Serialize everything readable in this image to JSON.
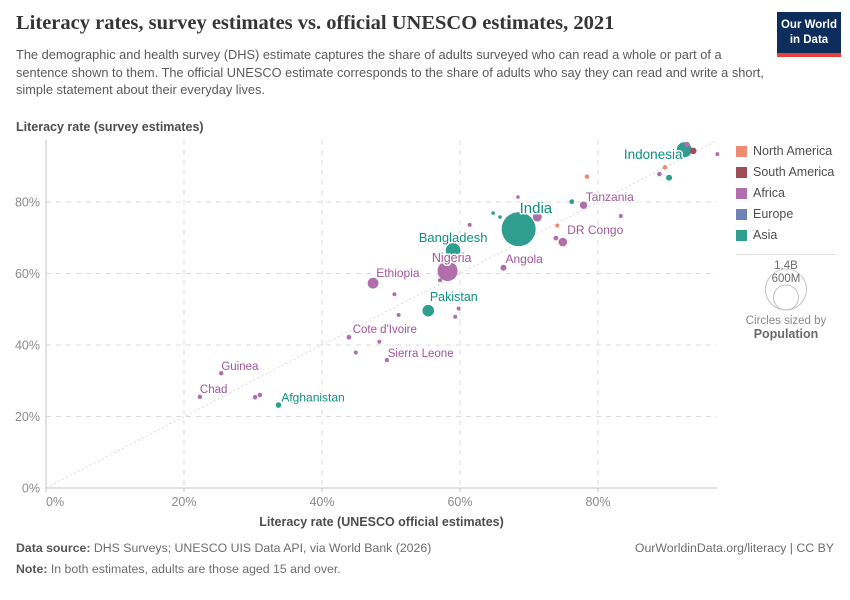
{
  "header": {
    "title": "Literacy rates, survey estimates vs. official UNESCO estimates, 2021",
    "subtitle": "The demographic and health survey (DHS) estimate captures the share of adults surveyed who can read a whole or part of a sentence shown to them. The official UNESCO estimate corresponds to the share of adults who say they can read and write a short, simple statement about their everyday lives.",
    "logo_line1": "Our World",
    "logo_line2": "in Data",
    "logo_bg": "#0d2e5c",
    "logo_stripe": "#e8413c"
  },
  "colors": {
    "North America": "#ee8b72",
    "South America": "#9c4f54",
    "Africa": "#b16dac",
    "Europe": "#6d83b5",
    "Asia": "#2f9e90"
  },
  "label_colors": {
    "North America": "#e56e5a",
    "South America": "#8c4347",
    "Africa": "#a2559c",
    "Europe": "#4c6a9c",
    "Asia": "#0d9180"
  },
  "legend": {
    "items": [
      {
        "label": "North America",
        "color": "#ee8b72"
      },
      {
        "label": "South America",
        "color": "#9c4f54"
      },
      {
        "label": "Africa",
        "color": "#b16dac"
      },
      {
        "label": "Europe",
        "color": "#6d83b5"
      },
      {
        "label": "Asia",
        "color": "#2f9e90"
      }
    ]
  },
  "size_legend": {
    "big_value": "1.4B",
    "small_value": "600M",
    "caption_line1": "Circles sized by",
    "caption_line2": "Population"
  },
  "chart_data": {
    "type": "scatter",
    "title": "Literacy rates, survey estimates vs. official UNESCO estimates, 2021",
    "xlabel": "Literacy rate (UNESCO official estimates)",
    "ylabel": "Literacy rate (survey estimates)",
    "xlim": [
      0,
      97
    ],
    "ylim": [
      0,
      97
    ],
    "x_ticks": [
      0,
      20,
      40,
      60,
      80
    ],
    "y_ticks": [
      0,
      20,
      40,
      60,
      80
    ],
    "grid_ticks": [
      20,
      40,
      60,
      80
    ],
    "grid": true,
    "diagonal_reference_line": true,
    "legend_position": "right",
    "sized_by": "Population",
    "points": [
      {
        "name": "India",
        "continent": "Asia",
        "x": 68.5,
        "y": 72.4,
        "r": 17,
        "label_x": 71.0,
        "label_y": 78.0,
        "label_size": 15
      },
      {
        "name": "Indonesia",
        "continent": "Asia",
        "x": 92.5,
        "y": 94.6,
        "r": 7.5,
        "label_x": 88.0,
        "label_y": 93.2,
        "label_size": 13.5
      },
      {
        "name": "Bangladesh",
        "continent": "Asia",
        "x": 59.0,
        "y": 66.5,
        "r": 7.3,
        "label_x": 59.0,
        "label_y": 69.9,
        "label_size": 13
      },
      {
        "name": "Pakistan",
        "continent": "Asia",
        "x": 55.4,
        "y": 49.6,
        "r": 5.8,
        "label_x": 59.1,
        "label_y": 53.4,
        "label_size": 12.5
      },
      {
        "name": "Afghanistan",
        "continent": "Asia",
        "x": 33.7,
        "y": 23.2,
        "r": 2.8,
        "label_x": 38.7,
        "label_y": 25.3,
        "label_size": 12
      },
      {
        "name": "Nigeria",
        "continent": "Africa",
        "x": 58.2,
        "y": 60.7,
        "r": 10,
        "label_x": 58.8,
        "label_y": 64.3,
        "label_size": 12.5
      },
      {
        "name": "Ethiopia",
        "continent": "Africa",
        "x": 47.4,
        "y": 57.3,
        "r": 5.4,
        "label_x": 51.0,
        "label_y": 60.1,
        "label_size": 12
      },
      {
        "name": "Tanzania",
        "continent": "Africa",
        "x": 77.9,
        "y": 79.1,
        "r": 3.7,
        "label_x": 81.7,
        "label_y": 81.4,
        "label_size": 12
      },
      {
        "name": "DR Congo",
        "continent": "Africa",
        "x": 74.9,
        "y": 68.8,
        "r": 4.3,
        "label_x": 79.6,
        "label_y": 72.2,
        "label_size": 12
      },
      {
        "name": "Angola",
        "continent": "Africa",
        "x": 66.3,
        "y": 61.6,
        "r": 3.0,
        "label_x": 69.3,
        "label_y": 64.1,
        "label_size": 12
      },
      {
        "name": "Cote d'Ivoire",
        "continent": "Africa",
        "x": 43.9,
        "y": 42.2,
        "r": 2.4,
        "label_x": 49.1,
        "label_y": 44.5,
        "label_size": 11.5
      },
      {
        "name": "Sierra Leone",
        "continent": "Africa",
        "x": 49.4,
        "y": 35.8,
        "r": 2.2,
        "label_x": 54.3,
        "label_y": 37.8,
        "label_size": 11.5
      },
      {
        "name": "Guinea",
        "continent": "Africa",
        "x": 25.4,
        "y": 32.1,
        "r": 2.2,
        "label_x": 28.1,
        "label_y": 34.1,
        "label_size": 11.5
      },
      {
        "name": "Chad",
        "continent": "Africa",
        "x": 22.3,
        "y": 25.5,
        "r": 2.2,
        "label_x": 24.3,
        "label_y": 27.7,
        "label_size": 11.5
      },
      {
        "continent": "Africa",
        "x": 92.9,
        "y": 96.1,
        "r": 2.7
      },
      {
        "continent": "South America",
        "x": 93.8,
        "y": 94.3,
        "r": 3.3
      },
      {
        "continent": "Africa",
        "x": 97.3,
        "y": 93.4,
        "r": 2.0
      },
      {
        "continent": "North America",
        "x": 89.7,
        "y": 89.7,
        "r": 2.3
      },
      {
        "continent": "Africa",
        "x": 88.9,
        "y": 87.8,
        "r": 2.3
      },
      {
        "continent": "Asia",
        "x": 90.3,
        "y": 86.8,
        "r": 3.0
      },
      {
        "continent": "North America",
        "x": 78.4,
        "y": 87.1,
        "r": 2.3
      },
      {
        "continent": "Asia",
        "x": 76.2,
        "y": 80.1,
        "r": 2.4
      },
      {
        "continent": "Africa",
        "x": 83.3,
        "y": 76.1,
        "r": 2.0
      },
      {
        "continent": "Africa",
        "x": 68.4,
        "y": 81.4,
        "r": 1.8
      },
      {
        "continent": "Asia",
        "x": 64.8,
        "y": 76.9,
        "r": 1.8
      },
      {
        "continent": "Asia",
        "x": 65.8,
        "y": 75.8,
        "r": 1.8
      },
      {
        "continent": "Africa",
        "x": 71.2,
        "y": 75.8,
        "r": 4.5
      },
      {
        "continent": "North America",
        "x": 74.1,
        "y": 73.4,
        "r": 2.0
      },
      {
        "continent": "Africa",
        "x": 61.4,
        "y": 73.6,
        "r": 2.0
      },
      {
        "continent": "Africa",
        "x": 73.9,
        "y": 69.9,
        "r": 2.4
      },
      {
        "continent": "Africa",
        "x": 57.1,
        "y": 58.1,
        "r": 2.0
      },
      {
        "continent": "Africa",
        "x": 50.5,
        "y": 54.2,
        "r": 2.0
      },
      {
        "continent": "Africa",
        "x": 51.1,
        "y": 48.4,
        "r": 2.0
      },
      {
        "continent": "Africa",
        "x": 59.8,
        "y": 50.2,
        "r": 2.0
      },
      {
        "continent": "Africa",
        "x": 59.3,
        "y": 47.9,
        "r": 2.0
      },
      {
        "continent": "Africa",
        "x": 48.3,
        "y": 40.9,
        "r": 2.0
      },
      {
        "continent": "Africa",
        "x": 44.9,
        "y": 37.9,
        "r": 2.0
      },
      {
        "continent": "Africa",
        "x": 30.3,
        "y": 25.4,
        "r": 2.3
      },
      {
        "continent": "Africa",
        "x": 31.0,
        "y": 26.0,
        "r": 2.3
      }
    ]
  },
  "footer": {
    "source_label": "Data source:",
    "source_text": "DHS Surveys; UNESCO UIS Data API, via World Bank (2026)",
    "note_label": "Note:",
    "note_text": "In both estimates, adults are those aged 15 and over.",
    "link": "OurWorldinData.org/literacy | CC BY"
  }
}
